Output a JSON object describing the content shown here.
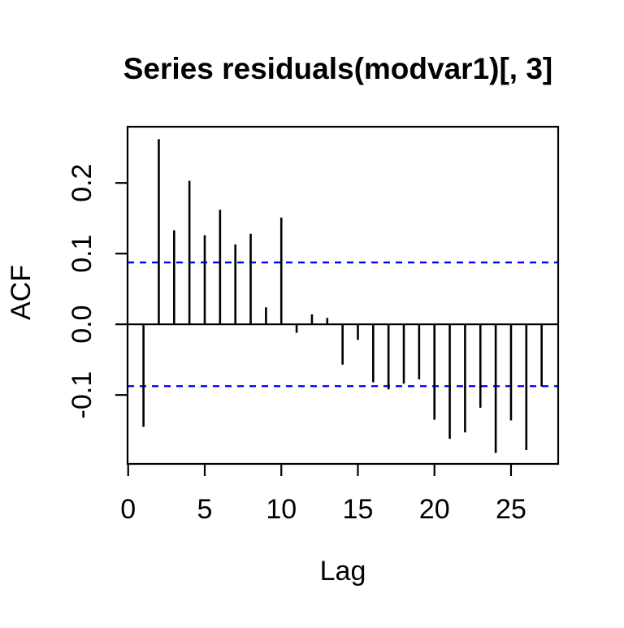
{
  "chart_data": {
    "type": "bar",
    "title": "Series residuals(modvar1)[, 3]",
    "xlabel": "Lag",
    "ylabel": "ACF",
    "lags": [
      1,
      2,
      3,
      4,
      5,
      6,
      7,
      8,
      9,
      10,
      11,
      12,
      13,
      14,
      15,
      16,
      17,
      18,
      19,
      20,
      21,
      22,
      23,
      24,
      25,
      26,
      27
    ],
    "values": [
      -0.145,
      0.262,
      0.133,
      0.203,
      0.126,
      0.162,
      0.113,
      0.128,
      0.024,
      0.151,
      -0.012,
      0.014,
      0.009,
      -0.057,
      -0.022,
      -0.082,
      -0.092,
      -0.084,
      -0.078,
      -0.135,
      -0.162,
      -0.153,
      -0.118,
      -0.182,
      -0.136,
      -0.178,
      -0.088
    ],
    "confidence_interval": 0.0875,
    "xticks": [
      0,
      5,
      10,
      15,
      20,
      25
    ],
    "ytick_values": [
      0.2,
      0.1,
      0.0,
      -0.1
    ],
    "ytick_labels": [
      "0.2",
      "0.1",
      "0.0",
      "-0.1"
    ],
    "xlim": [
      -0.04,
      28.08
    ],
    "ylim": [
      -0.1975,
      0.2795
    ],
    "grid": false,
    "colors": {
      "bar": "#000000",
      "ci_line": "#0000ff",
      "text": "#000000",
      "background": "#ffffff"
    }
  }
}
